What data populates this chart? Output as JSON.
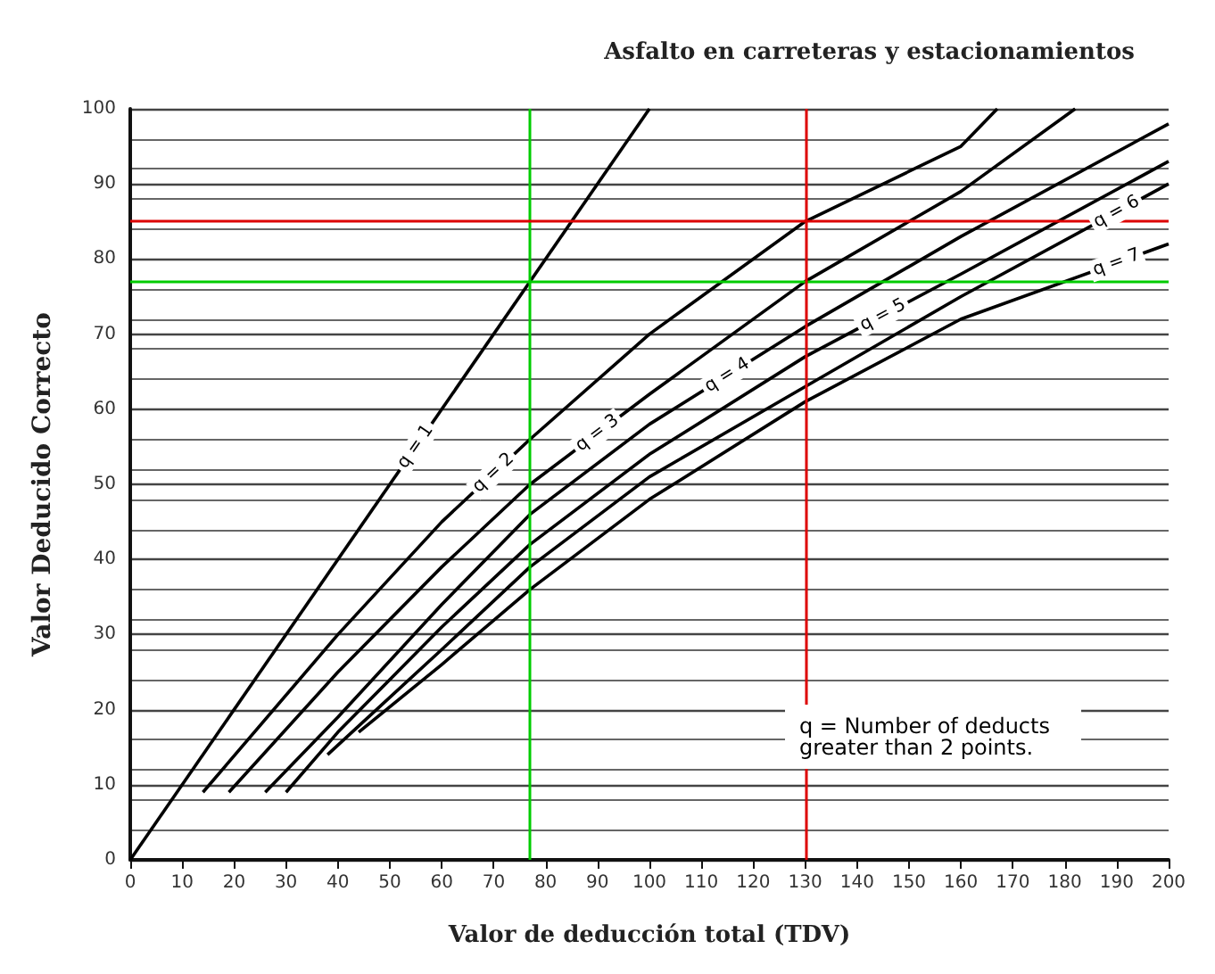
{
  "chart_data": {
    "type": "line",
    "title": "Asfalto en carreteras y estacionamientos",
    "xlabel": "Valor de deducción total (TDV)",
    "ylabel": "Valor Deducido Correcto",
    "xlim": [
      0,
      200
    ],
    "xticks": [
      0,
      10,
      20,
      30,
      40,
      50,
      60,
      70,
      80,
      90,
      100,
      110,
      120,
      130,
      140,
      150,
      160,
      170,
      180,
      190,
      200
    ],
    "ylim": [
      0,
      100
    ],
    "yticks": [
      0,
      10,
      20,
      30,
      40,
      50,
      60,
      70,
      80,
      90,
      100
    ],
    "grid": "y",
    "marker": "none",
    "line_style": "solid",
    "series": [
      {
        "color": "#000000",
        "x": [
          0,
          100
        ],
        "values": [
          0,
          100
        ]
      },
      {
        "color": "#000000",
        "x": [
          14,
          40,
          60,
          77,
          100,
          130,
          160,
          167
        ],
        "values": [
          9,
          30,
          45,
          56,
          70,
          85,
          95,
          100
        ]
      },
      {
        "color": "#000000",
        "x": [
          19,
          40,
          60,
          77,
          100,
          130,
          160,
          182
        ],
        "values": [
          9,
          25,
          39,
          50,
          62,
          77,
          89,
          100
        ]
      },
      {
        "color": "#000000",
        "x": [
          26,
          40,
          60,
          77,
          100,
          130,
          160,
          200
        ],
        "values": [
          9,
          19,
          34,
          46,
          58,
          71,
          83,
          98
        ]
      },
      {
        "color": "#000000",
        "x": [
          30,
          40,
          60,
          77,
          100,
          130,
          160,
          200
        ],
        "values": [
          9,
          17,
          31,
          42,
          54,
          67,
          78,
          93
        ]
      },
      {
        "color": "#000000",
        "x": [
          38,
          60,
          77,
          100,
          130,
          160,
          200
        ],
        "values": [
          14,
          28,
          39,
          51,
          63,
          75,
          90
        ]
      },
      {
        "color": "#000000",
        "x": [
          44,
          60,
          77,
          100,
          130,
          160,
          200
        ],
        "values": [
          17,
          26,
          36,
          48,
          61,
          72,
          82
        ]
      }
    ],
    "ref_lines": [
      {
        "axis": "x",
        "value": 77,
        "color": "#00cc00"
      },
      {
        "axis": "y",
        "value": 77,
        "color": "#00cc00"
      },
      {
        "axis": "x",
        "value": 130,
        "color": "#dd0000"
      },
      {
        "axis": "y",
        "value": 85,
        "color": "#dd0000"
      }
    ],
    "annotations": [
      {
        "text": "q = 1",
        "x": 55,
        "y": 55
      },
      {
        "text": "q = 2",
        "x": 70,
        "y": 51.5
      },
      {
        "text": "q = 3",
        "x": 90,
        "y": 56.8
      },
      {
        "text": "q = 4",
        "x": 115,
        "y": 64.5
      },
      {
        "text": "q = 5",
        "x": 145,
        "y": 72.5
      },
      {
        "text": "q = 6",
        "x": 190,
        "y": 86.25
      },
      {
        "text": "q = 7",
        "x": 190,
        "y": 79.5
      },
      "q = Number of deducts greater than 2 points."
    ]
  }
}
